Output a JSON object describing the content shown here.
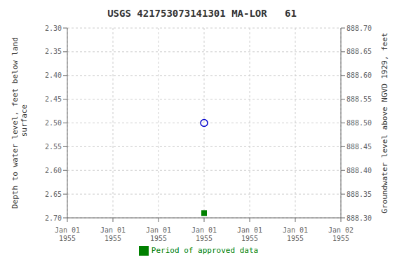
{
  "chart_data": {
    "type": "scatter",
    "title": "USGS 421753073141301 MA-LOR   61",
    "ylabel": "Depth to water level, feet below land\n surface",
    "y2label": "Groundwater level above NGVD 1929, feet",
    "categories": [
      "Jan 01\n1955",
      "Jan 01\n1955",
      "Jan 01\n1955",
      "Jan 01\n1955",
      "Jan 01\n1955",
      "Jan 01\n1955",
      "Jan 02\n1955"
    ],
    "series": [
      {
        "color": "#0000cc",
        "marker": "circle",
        "values": [
          null,
          null,
          null,
          2.5,
          null,
          null,
          null
        ]
      },
      {
        "name": "Period of approved data",
        "color": "#008000",
        "marker": "square",
        "values": [
          null,
          null,
          null,
          2.69,
          null,
          null,
          null
        ]
      }
    ],
    "ylim": [
      2.7,
      2.3
    ],
    "yticks": [
      {
        "value": 2.3,
        "label": "2.30"
      },
      2.35,
      {
        "value": 2.4,
        "label": "2.40"
      },
      2.45,
      {
        "value": 2.5,
        "label": "2.50"
      },
      2.55,
      {
        "value": 2.6,
        "label": "2.60"
      },
      2.65,
      {
        "value": 2.7,
        "label": "2.70"
      }
    ],
    "y2lim": [
      888.3,
      888.7
    ],
    "y2ticks": [
      {
        "value": 888.7,
        "label": "888.70"
      },
      888.65,
      {
        "value": 888.6,
        "label": "888.60"
      },
      888.55,
      {
        "value": 888.5,
        "label": "888.50"
      },
      888.45,
      {
        "value": 888.4,
        "label": "888.40"
      },
      888.35,
      {
        "value": 888.3,
        "label": "888.30"
      }
    ],
    "grid": true,
    "legend": "bottom"
  }
}
